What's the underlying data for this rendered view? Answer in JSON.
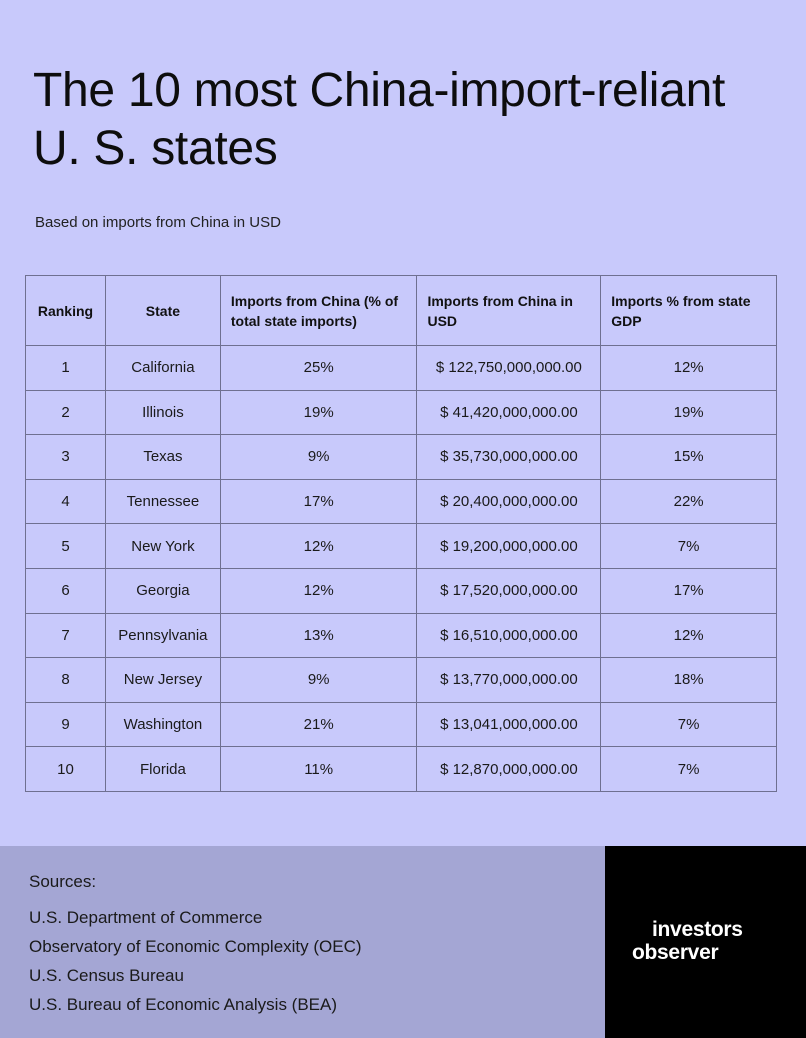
{
  "title": "The 10 most China-import-reliant U. S. states",
  "subtitle": "Based on imports from China in USD",
  "chart_data": {
    "type": "table",
    "columns": [
      "Ranking",
      "State",
      "Imports from China (% of total state imports)",
      "Imports from China in USD",
      "Imports % from state GDP"
    ],
    "rows": [
      [
        "1",
        "California",
        "25%",
        "$ 122,750,000,000.00",
        "12%"
      ],
      [
        "2",
        "Illinois",
        "19%",
        "$ 41,420,000,000.00",
        "19%"
      ],
      [
        "3",
        "Texas",
        "9%",
        "$ 35,730,000,000.00",
        "15%"
      ],
      [
        "4",
        "Tennessee",
        "17%",
        "$ 20,400,000,000.00",
        "22%"
      ],
      [
        "5",
        "New York",
        "12%",
        "$ 19,200,000,000.00",
        "7%"
      ],
      [
        "6",
        "Georgia",
        "12%",
        "$ 17,520,000,000.00",
        "17%"
      ],
      [
        "7",
        "Pennsylvania",
        "13%",
        "$ 16,510,000,000.00",
        "12%"
      ],
      [
        "8",
        "New Jersey",
        "9%",
        "$ 13,770,000,000.00",
        "18%"
      ],
      [
        "9",
        "Washington",
        "21%",
        "$ 13,041,000,000.00",
        "7%"
      ],
      [
        "10",
        "Florida",
        "11%",
        "$ 12,870,000,000.00",
        "7%"
      ]
    ]
  },
  "sources": {
    "heading": "Sources:",
    "items": [
      "U.S. Department of Commerce",
      "Observatory of Economic Complexity (OEC)",
      "U.S. Census Bureau",
      "U.S. Bureau of Economic Analysis (BEA)"
    ]
  },
  "logo": {
    "line1": "investors",
    "line2": "observer"
  },
  "colors": {
    "background": "#c8c9fb",
    "sources_panel": "#a4a6d4",
    "logo_panel": "#000000"
  }
}
